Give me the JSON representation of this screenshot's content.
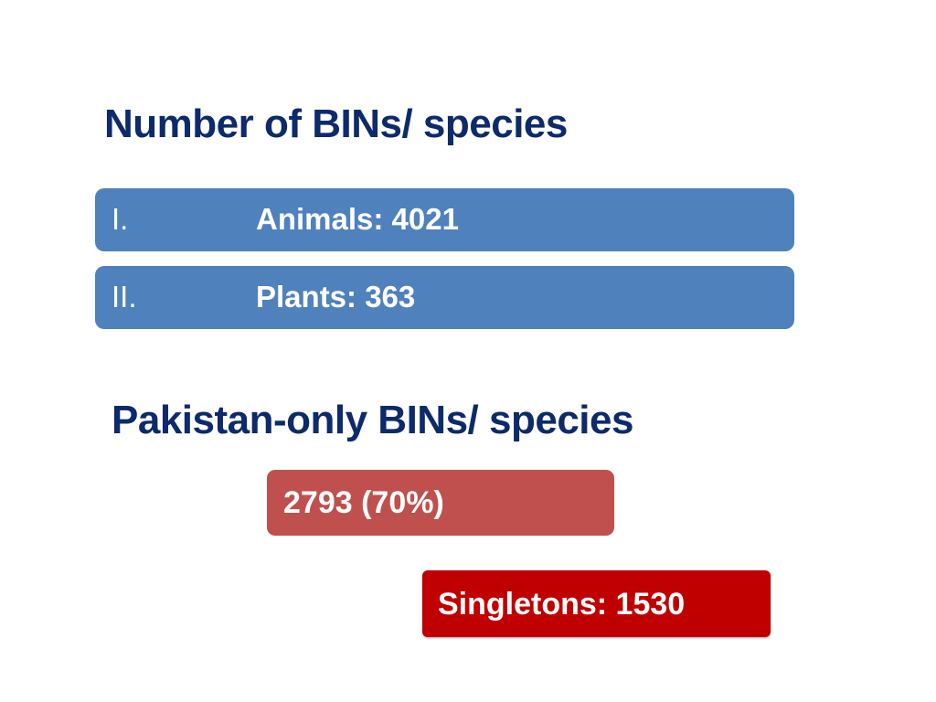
{
  "slide": {
    "heading_1": "Number of BINs/ species",
    "list": [
      {
        "numeral": "I.",
        "value": "Animals: 4021"
      },
      {
        "numeral": "II.",
        "value": "Plants: 363"
      }
    ],
    "heading_2": "Pakistan-only BINs/ species",
    "callout_pakistan_only": "2793 (70%)",
    "callout_singletons": "Singletons: 1530"
  },
  "colors": {
    "heading": "#0d2a6b",
    "list_fill": "#4f81bd",
    "callout_1_fill": "#c0504d",
    "callout_2_fill": "#c00000"
  }
}
